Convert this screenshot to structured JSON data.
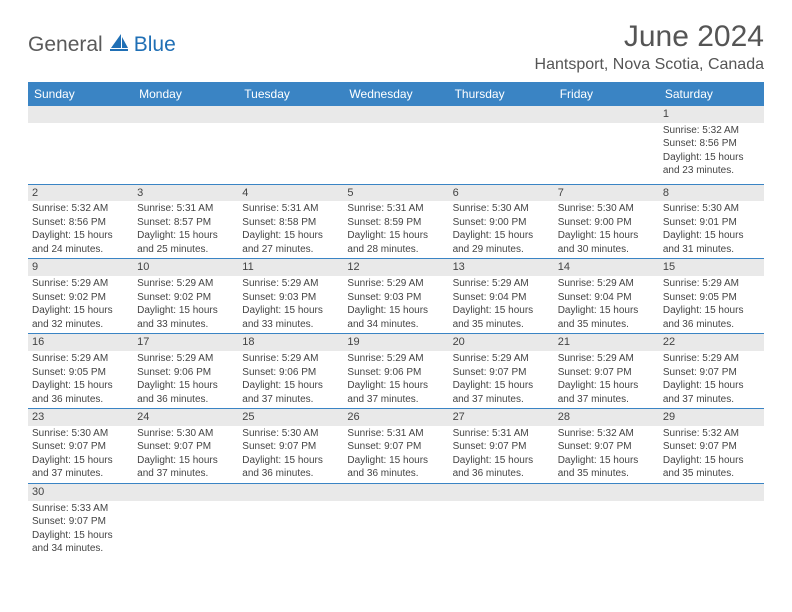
{
  "logo": {
    "part1": "General",
    "part2": "Blue"
  },
  "title": "June 2024",
  "location": "Hantsport, Nova Scotia, Canada",
  "colors": {
    "header_bg": "#3a84c4",
    "header_text": "#ffffff",
    "daynum_bg": "#e9e9e9",
    "row_border": "#3a84c4",
    "logo_gray": "#5a5a5a",
    "logo_blue": "#1f6fb5",
    "title_color": "#555555",
    "body_text": "#444444"
  },
  "day_labels": [
    "Sunday",
    "Monday",
    "Tuesday",
    "Wednesday",
    "Thursday",
    "Friday",
    "Saturday"
  ],
  "weeks": [
    [
      null,
      null,
      null,
      null,
      null,
      null,
      {
        "n": "1",
        "sr": "Sunrise: 5:32 AM",
        "ss": "Sunset: 8:56 PM",
        "d1": "Daylight: 15 hours",
        "d2": "and 23 minutes."
      }
    ],
    [
      {
        "n": "2",
        "sr": "Sunrise: 5:32 AM",
        "ss": "Sunset: 8:56 PM",
        "d1": "Daylight: 15 hours",
        "d2": "and 24 minutes."
      },
      {
        "n": "3",
        "sr": "Sunrise: 5:31 AM",
        "ss": "Sunset: 8:57 PM",
        "d1": "Daylight: 15 hours",
        "d2": "and 25 minutes."
      },
      {
        "n": "4",
        "sr": "Sunrise: 5:31 AM",
        "ss": "Sunset: 8:58 PM",
        "d1": "Daylight: 15 hours",
        "d2": "and 27 minutes."
      },
      {
        "n": "5",
        "sr": "Sunrise: 5:31 AM",
        "ss": "Sunset: 8:59 PM",
        "d1": "Daylight: 15 hours",
        "d2": "and 28 minutes."
      },
      {
        "n": "6",
        "sr": "Sunrise: 5:30 AM",
        "ss": "Sunset: 9:00 PM",
        "d1": "Daylight: 15 hours",
        "d2": "and 29 minutes."
      },
      {
        "n": "7",
        "sr": "Sunrise: 5:30 AM",
        "ss": "Sunset: 9:00 PM",
        "d1": "Daylight: 15 hours",
        "d2": "and 30 minutes."
      },
      {
        "n": "8",
        "sr": "Sunrise: 5:30 AM",
        "ss": "Sunset: 9:01 PM",
        "d1": "Daylight: 15 hours",
        "d2": "and 31 minutes."
      }
    ],
    [
      {
        "n": "9",
        "sr": "Sunrise: 5:29 AM",
        "ss": "Sunset: 9:02 PM",
        "d1": "Daylight: 15 hours",
        "d2": "and 32 minutes."
      },
      {
        "n": "10",
        "sr": "Sunrise: 5:29 AM",
        "ss": "Sunset: 9:02 PM",
        "d1": "Daylight: 15 hours",
        "d2": "and 33 minutes."
      },
      {
        "n": "11",
        "sr": "Sunrise: 5:29 AM",
        "ss": "Sunset: 9:03 PM",
        "d1": "Daylight: 15 hours",
        "d2": "and 33 minutes."
      },
      {
        "n": "12",
        "sr": "Sunrise: 5:29 AM",
        "ss": "Sunset: 9:03 PM",
        "d1": "Daylight: 15 hours",
        "d2": "and 34 minutes."
      },
      {
        "n": "13",
        "sr": "Sunrise: 5:29 AM",
        "ss": "Sunset: 9:04 PM",
        "d1": "Daylight: 15 hours",
        "d2": "and 35 minutes."
      },
      {
        "n": "14",
        "sr": "Sunrise: 5:29 AM",
        "ss": "Sunset: 9:04 PM",
        "d1": "Daylight: 15 hours",
        "d2": "and 35 minutes."
      },
      {
        "n": "15",
        "sr": "Sunrise: 5:29 AM",
        "ss": "Sunset: 9:05 PM",
        "d1": "Daylight: 15 hours",
        "d2": "and 36 minutes."
      }
    ],
    [
      {
        "n": "16",
        "sr": "Sunrise: 5:29 AM",
        "ss": "Sunset: 9:05 PM",
        "d1": "Daylight: 15 hours",
        "d2": "and 36 minutes."
      },
      {
        "n": "17",
        "sr": "Sunrise: 5:29 AM",
        "ss": "Sunset: 9:06 PM",
        "d1": "Daylight: 15 hours",
        "d2": "and 36 minutes."
      },
      {
        "n": "18",
        "sr": "Sunrise: 5:29 AM",
        "ss": "Sunset: 9:06 PM",
        "d1": "Daylight: 15 hours",
        "d2": "and 37 minutes."
      },
      {
        "n": "19",
        "sr": "Sunrise: 5:29 AM",
        "ss": "Sunset: 9:06 PM",
        "d1": "Daylight: 15 hours",
        "d2": "and 37 minutes."
      },
      {
        "n": "20",
        "sr": "Sunrise: 5:29 AM",
        "ss": "Sunset: 9:07 PM",
        "d1": "Daylight: 15 hours",
        "d2": "and 37 minutes."
      },
      {
        "n": "21",
        "sr": "Sunrise: 5:29 AM",
        "ss": "Sunset: 9:07 PM",
        "d1": "Daylight: 15 hours",
        "d2": "and 37 minutes."
      },
      {
        "n": "22",
        "sr": "Sunrise: 5:29 AM",
        "ss": "Sunset: 9:07 PM",
        "d1": "Daylight: 15 hours",
        "d2": "and 37 minutes."
      }
    ],
    [
      {
        "n": "23",
        "sr": "Sunrise: 5:30 AM",
        "ss": "Sunset: 9:07 PM",
        "d1": "Daylight: 15 hours",
        "d2": "and 37 minutes."
      },
      {
        "n": "24",
        "sr": "Sunrise: 5:30 AM",
        "ss": "Sunset: 9:07 PM",
        "d1": "Daylight: 15 hours",
        "d2": "and 37 minutes."
      },
      {
        "n": "25",
        "sr": "Sunrise: 5:30 AM",
        "ss": "Sunset: 9:07 PM",
        "d1": "Daylight: 15 hours",
        "d2": "and 36 minutes."
      },
      {
        "n": "26",
        "sr": "Sunrise: 5:31 AM",
        "ss": "Sunset: 9:07 PM",
        "d1": "Daylight: 15 hours",
        "d2": "and 36 minutes."
      },
      {
        "n": "27",
        "sr": "Sunrise: 5:31 AM",
        "ss": "Sunset: 9:07 PM",
        "d1": "Daylight: 15 hours",
        "d2": "and 36 minutes."
      },
      {
        "n": "28",
        "sr": "Sunrise: 5:32 AM",
        "ss": "Sunset: 9:07 PM",
        "d1": "Daylight: 15 hours",
        "d2": "and 35 minutes."
      },
      {
        "n": "29",
        "sr": "Sunrise: 5:32 AM",
        "ss": "Sunset: 9:07 PM",
        "d1": "Daylight: 15 hours",
        "d2": "and 35 minutes."
      }
    ],
    [
      {
        "n": "30",
        "sr": "Sunrise: 5:33 AM",
        "ss": "Sunset: 9:07 PM",
        "d1": "Daylight: 15 hours",
        "d2": "and 34 minutes."
      },
      null,
      null,
      null,
      null,
      null,
      null
    ]
  ]
}
